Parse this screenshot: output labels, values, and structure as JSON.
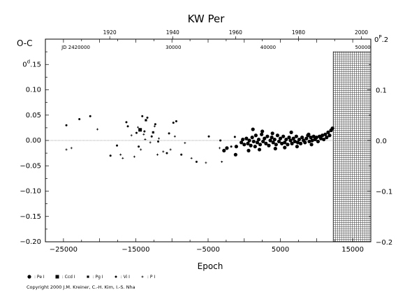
{
  "chart_data": {
    "type": "scatter",
    "title": "KW Per",
    "ylabel_left": "O-C",
    "xlabel": "Epoch",
    "xlim": [
      -27500,
      17500
    ],
    "ylim": [
      -0.2,
      0.2
    ],
    "x_ticks": [
      -25000,
      -15000,
      -5000,
      5000,
      15000
    ],
    "x_tick_labels": [
      "−25000",
      "−15000",
      "−5000",
      "5000",
      "15000"
    ],
    "y_ticks": [
      -0.2,
      -0.15,
      -0.1,
      -0.05,
      0.0,
      0.05,
      0.1,
      0.15
    ],
    "y_tick_labels": [
      "−0.20",
      "−0.15",
      "−0.10",
      "−0.05",
      "0.00",
      "0.05",
      "0.10",
      "0.15"
    ],
    "y_top_label": {
      "prefix": "0",
      "sup": "d",
      "rest": ".15"
    },
    "right_axis": {
      "ticks": [
        -0.2,
        -0.1,
        0.0,
        0.1,
        0.2
      ],
      "tick_labels": [
        "−0.2",
        "−0.1",
        "0.0",
        "0.1",
        "0.2"
      ],
      "top_label": {
        "prefix": "0",
        "sup": "P",
        "rest": ".2"
      }
    },
    "top_axis_years": {
      "labels": [
        "1920",
        "1940",
        "1960",
        "1980",
        "2000"
      ],
      "epochs": [
        -18600,
        -9900,
        -1200,
        7500,
        16200
      ]
    },
    "jd_labels": [
      {
        "text": "JD  2420000",
        "epoch": -23300
      },
      {
        "text": "30000",
        "epoch": -9800
      },
      {
        "text": "40000",
        "epoch": 3300
      },
      {
        "text": "50000",
        "epoch": 16400
      }
    ],
    "future_region": {
      "from_epoch": 12300
    },
    "zero_line": 0.0,
    "series": [
      {
        "name": "Pe I",
        "marker": "dot",
        "points": [
          [
            -2800,
            -0.02
          ],
          [
            -1200,
            -0.028
          ],
          [
            -1100,
            -0.012
          ],
          [
            -400,
            -0.004
          ],
          [
            -200,
            0.002
          ],
          [
            -2400,
            -0.015
          ],
          [
            0,
            -0.008
          ],
          [
            300,
            0.004
          ],
          [
            500,
            -0.006
          ],
          [
            700,
            0.0
          ],
          [
            900,
            -0.01
          ],
          [
            1100,
            0.006
          ],
          [
            1300,
            -0.002
          ],
          [
            1500,
            -0.012
          ],
          [
            1600,
            0.01
          ],
          [
            1800,
            -0.004
          ],
          [
            2000,
            0.002
          ],
          [
            2200,
            -0.008
          ],
          [
            2400,
            0.012
          ],
          [
            2600,
            -0.002
          ],
          [
            2800,
            0.004
          ],
          [
            3000,
            -0.006
          ],
          [
            3200,
            0.008
          ],
          [
            3400,
            -0.01
          ],
          [
            3600,
            0.0
          ],
          [
            3800,
            0.006
          ],
          [
            4000,
            -0.004
          ],
          [
            4200,
            0.002
          ],
          [
            4400,
            -0.008
          ],
          [
            4600,
            0.01
          ],
          [
            4800,
            -0.002
          ],
          [
            5000,
            0.004
          ],
          [
            5200,
            -0.006
          ],
          [
            5400,
            0.008
          ],
          [
            5600,
            -0.004
          ],
          [
            5800,
            0.002
          ],
          [
            6000,
            -0.008
          ],
          [
            6200,
            0.006
          ],
          [
            6400,
            0.0
          ],
          [
            6600,
            -0.006
          ],
          [
            6800,
            0.004
          ],
          [
            7000,
            -0.002
          ],
          [
            7200,
            0.008
          ],
          [
            7400,
            -0.004
          ],
          [
            7600,
            0.002
          ],
          [
            7800,
            -0.006
          ],
          [
            8000,
            0.006
          ],
          [
            8200,
            0.0
          ],
          [
            8400,
            -0.004
          ],
          [
            8600,
            0.004
          ],
          [
            8800,
            0.01
          ],
          [
            9000,
            -0.002
          ],
          [
            9200,
            0.006
          ],
          [
            9400,
            0.0
          ],
          [
            9600,
            0.008
          ],
          [
            9800,
            0.002
          ],
          [
            10000,
            0.006
          ],
          [
            10200,
            -0.002
          ],
          [
            10400,
            0.008
          ],
          [
            10600,
            0.004
          ],
          [
            10800,
            0.01
          ],
          [
            11000,
            0.002
          ],
          [
            11200,
            0.012
          ],
          [
            11400,
            0.006
          ],
          [
            11600,
            0.016
          ],
          [
            11800,
            0.01
          ],
          [
            12000,
            0.02
          ],
          [
            12200,
            0.024
          ],
          [
            1200,
            0.022
          ],
          [
            2500,
            0.018
          ],
          [
            3900,
            0.014
          ],
          [
            6500,
            0.016
          ],
          [
            8900,
            0.012
          ],
          [
            600,
            -0.02
          ],
          [
            2100,
            -0.018
          ],
          [
            4300,
            -0.016
          ],
          [
            5600,
            -0.014
          ],
          [
            7300,
            -0.012
          ],
          [
            9300,
            -0.008
          ]
        ]
      },
      {
        "name": "Ccd I",
        "marker": "square",
        "points": [
          [
            -14400,
            0.021
          ]
        ]
      },
      {
        "name": "Pg I",
        "marker": "square-small",
        "points": [
          [
            -13600,
            0.04
          ],
          [
            -12600,
            0.016
          ]
        ]
      },
      {
        "name": "Vi I",
        "marker": "dot-small",
        "points": [
          [
            -24600,
            0.03
          ],
          [
            -22800,
            0.042
          ],
          [
            -21300,
            0.048
          ],
          [
            -18500,
            -0.03
          ],
          [
            -17600,
            -0.01
          ],
          [
            -16300,
            0.036
          ],
          [
            -16100,
            0.028
          ],
          [
            -14900,
            0.015
          ],
          [
            -14600,
            -0.012
          ],
          [
            -14100,
            0.048
          ],
          [
            -13800,
            0.018
          ],
          [
            -13400,
            0.045
          ],
          [
            -12800,
            0.008
          ],
          [
            -12300,
            0.032
          ],
          [
            -11900,
            -0.002
          ],
          [
            -10700,
            -0.025
          ],
          [
            -10400,
            0.014
          ],
          [
            -9800,
            0.035
          ],
          [
            -9400,
            0.038
          ],
          [
            -8700,
            -0.028
          ],
          [
            -6600,
            -0.042
          ],
          [
            -4900,
            0.008
          ],
          [
            -3300,
            0.0
          ],
          [
            -1300,
            0.007
          ],
          [
            -1800,
            -0.012
          ]
        ]
      },
      {
        "name": "P I",
        "marker": "plus",
        "points": [
          [
            -24600,
            -0.018
          ],
          [
            -23900,
            -0.015
          ],
          [
            -20300,
            0.022
          ],
          [
            -17100,
            -0.028
          ],
          [
            -16800,
            -0.035
          ],
          [
            -15200,
            -0.032
          ],
          [
            -14700,
            0.026
          ],
          [
            -14300,
            -0.018
          ],
          [
            -13900,
            0.012
          ],
          [
            -13700,
            0.002
          ],
          [
            -13000,
            -0.004
          ],
          [
            -12000,
            -0.028
          ],
          [
            -11800,
            0.004
          ],
          [
            -11200,
            -0.022
          ],
          [
            -10200,
            -0.018
          ],
          [
            -9600,
            0.008
          ],
          [
            -8200,
            -0.005
          ],
          [
            -7300,
            -0.035
          ],
          [
            -5300,
            -0.044
          ],
          [
            -3400,
            -0.015
          ],
          [
            -3100,
            -0.042
          ],
          [
            -12400,
            0.028
          ],
          [
            -15600,
            0.01
          ]
        ]
      }
    ],
    "legend": [
      {
        "marker": "dot",
        "label": ": Pe I"
      },
      {
        "marker": "square",
        "label": ": Ccd I"
      },
      {
        "marker": "square-small",
        "label": ": Pg I"
      },
      {
        "marker": "dot-small",
        "label": ": Vi I"
      },
      {
        "marker": "plus",
        "label": ": P I"
      }
    ]
  },
  "copyright": "Copyright 2000 J.M. Kreiner, C.-H. Kim, I.-S. Nha"
}
